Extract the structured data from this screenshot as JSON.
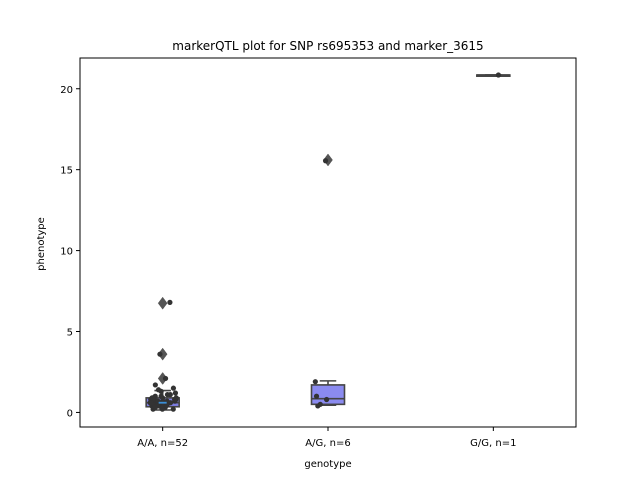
{
  "chart_data": {
    "type": "box",
    "title": "markerQTL plot for SNP rs695353 and marker_3615",
    "xlabel": "genotype",
    "ylabel": "phenotype",
    "ylim": [
      -0.9,
      21.9
    ],
    "yticks": [
      0,
      5,
      10,
      15,
      20
    ],
    "categories": [
      "A/A, n=52",
      "A/G, n=6",
      "G/G, n=1"
    ],
    "colors": {
      "A/A, n=52": "#7d7de0",
      "A/G, n=6": "#8b8bf0",
      "G/G, n=1": "#8b8bf0",
      "lines": "#454545",
      "points": "#333333",
      "median_mark": "#3b8fd6"
    },
    "boxes": [
      {
        "category": "A/A, n=52",
        "whisker_low": 0.15,
        "q1": 0.35,
        "median": 0.6,
        "q3": 0.9,
        "whisker_high": 1.35,
        "outliers": [
          2.1,
          3.6,
          6.75
        ]
      },
      {
        "category": "A/G, n=6",
        "whisker_low": 0.45,
        "q1": 0.5,
        "median": 0.85,
        "q3": 1.7,
        "whisker_high": 1.95,
        "outliers": [
          15.6
        ]
      },
      {
        "category": "G/G, n=1",
        "whisker_low": 20.85,
        "q1": 20.85,
        "median": 20.85,
        "q3": 20.85,
        "whisker_high": 20.85,
        "outliers": []
      }
    ],
    "points": [
      {
        "category": "A/A, n=52",
        "values": [
          0.2,
          0.3,
          0.4,
          0.5,
          0.6,
          0.7,
          0.8,
          0.2,
          0.3,
          0.4,
          0.5,
          0.6,
          0.7,
          0.8,
          0.9,
          1.0,
          1.1,
          0.2,
          0.3,
          0.4,
          0.5,
          0.6,
          0.7,
          0.8,
          0.9,
          1.0,
          1.2,
          0.3,
          0.4,
          0.5,
          0.6,
          0.7,
          0.8,
          0.9,
          1.3,
          0.3,
          0.5,
          0.7,
          0.9,
          1.1,
          1.4,
          0.4,
          0.6,
          0.8,
          1.7,
          1.5,
          0.25,
          0.35,
          2.1,
          3.6,
          6.8,
          0.45
        ]
      },
      {
        "category": "A/G, n=6",
        "values": [
          0.4,
          0.5,
          0.8,
          1.0,
          1.9,
          15.55
        ]
      },
      {
        "category": "G/G, n=1",
        "values": [
          20.85
        ]
      }
    ]
  }
}
